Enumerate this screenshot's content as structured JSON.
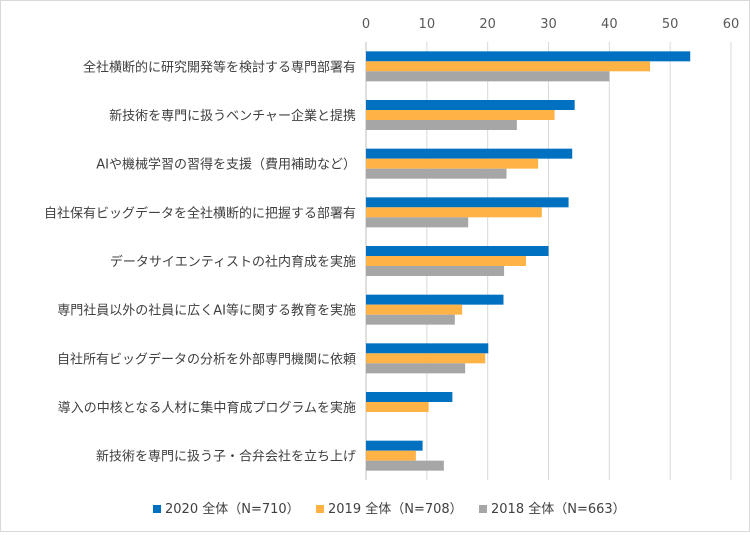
{
  "chart_data": {
    "type": "bar",
    "orientation": "horizontal",
    "categories": [
      "全社横断的に研究開発等を検討する専門部署有",
      "新技術を専門に扱うベンチャー企業と提携",
      "AIや機械学習の習得を支援（費用補助など）",
      "自社保有ビッグデータを全社横断的に把握する部署有",
      "データサイエンティストの社内育成を実施",
      "専門社員以外の社員に広くAI等に関する教育を実施",
      "自社所有ビッグデータの分析を外部専門機関に依頼",
      "導入の中核となる人材に集中育成プログラムを実施",
      "新技術を専門に扱う子・合弁会社を立ち上げ"
    ],
    "series": [
      {
        "name": "2020 全体（N=710）",
        "color": "#0070c0",
        "values": [
          53.3,
          34.3,
          33.9,
          33.3,
          30.0,
          22.6,
          20.1,
          14.2,
          9.3
        ]
      },
      {
        "name": "2019 全体（N=708）",
        "color": "#ffb347",
        "values": [
          46.7,
          31.0,
          28.3,
          28.9,
          26.3,
          15.8,
          19.6,
          10.3,
          8.2
        ]
      },
      {
        "name": "2018 全体（N=663）",
        "color": "#a6a6a6",
        "values": [
          40.0,
          24.8,
          23.1,
          16.8,
          22.7,
          14.6,
          16.3,
          null,
          12.8
        ]
      }
    ],
    "xlim": [
      0,
      60
    ],
    "xticks": [
      "0",
      "10",
      "20",
      "30",
      "40",
      "50",
      "60"
    ],
    "grid": true,
    "legend_position": "bottom"
  }
}
